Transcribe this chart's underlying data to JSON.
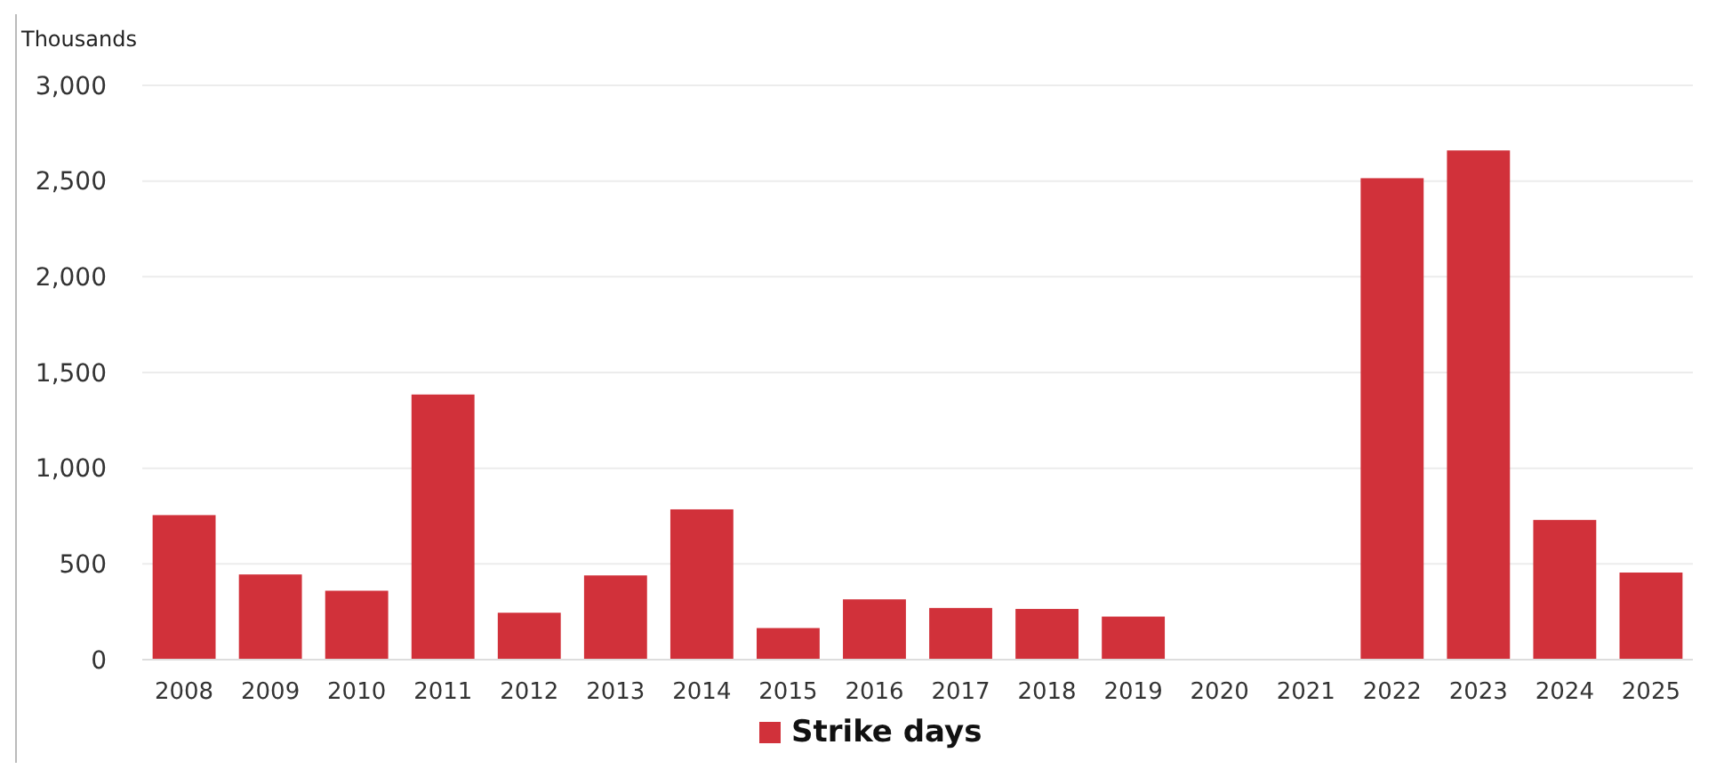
{
  "chart_data": {
    "type": "bar",
    "ylabel": "Thousands",
    "categories": [
      "2008",
      "2009",
      "2010",
      "2011",
      "2012",
      "2013",
      "2014",
      "2015",
      "2016",
      "2017",
      "2018",
      "2019",
      "2020",
      "2021",
      "2022",
      "2023",
      "2024",
      "2025"
    ],
    "series": [
      {
        "name": "Strike days",
        "color": "#d1313a",
        "values": [
          755,
          445,
          360,
          1385,
          245,
          440,
          785,
          165,
          315,
          270,
          265,
          225,
          0,
          0,
          2515,
          2660,
          730,
          455
        ]
      }
    ],
    "ylim": [
      0,
      3000
    ],
    "yticks": [
      {
        "value": 0,
        "label": "0"
      },
      {
        "value": 500,
        "label": "500"
      },
      {
        "value": 1000,
        "label": "1,000"
      },
      {
        "value": 1500,
        "label": "1,500"
      },
      {
        "value": 2000,
        "label": "2,000"
      },
      {
        "value": 2500,
        "label": "2,500"
      },
      {
        "value": 3000,
        "label": "3,000"
      }
    ],
    "grid": "y",
    "legend": "bottom"
  }
}
